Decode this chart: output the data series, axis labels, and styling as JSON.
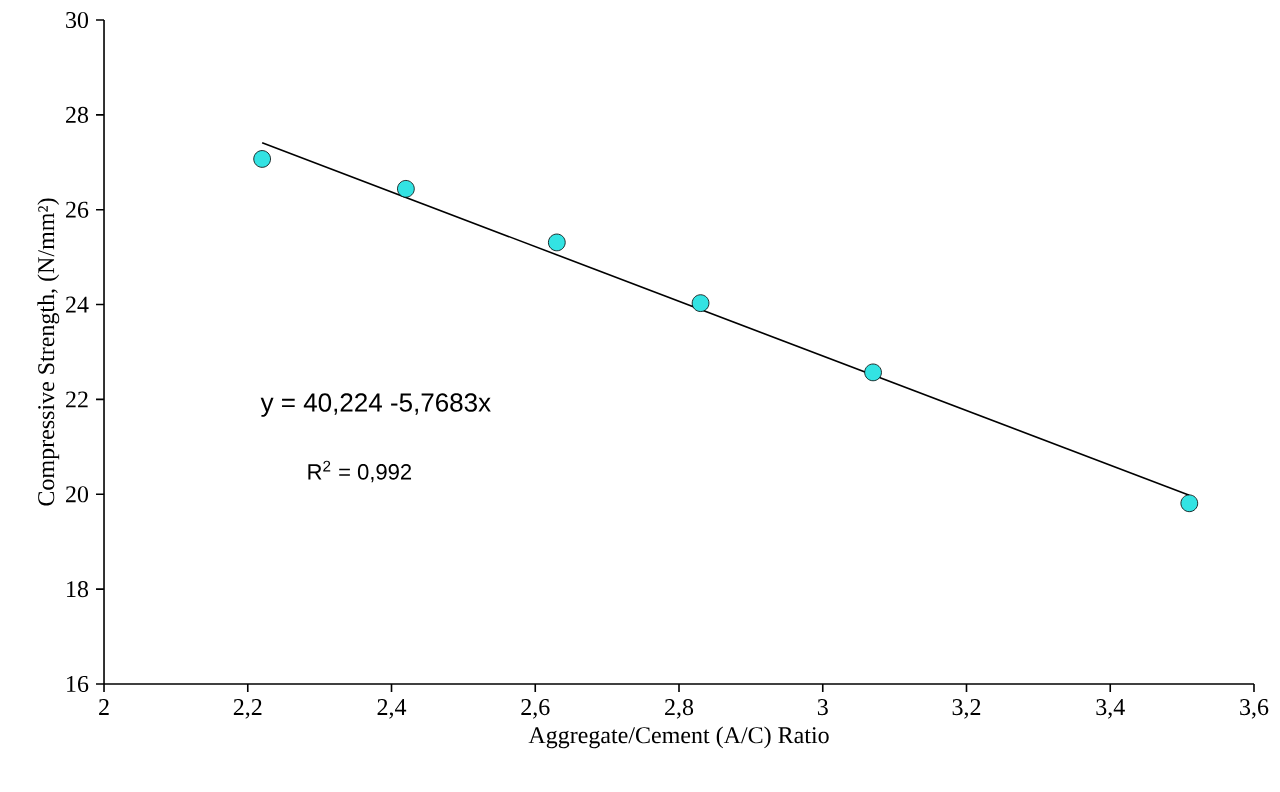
{
  "chart_data": {
    "type": "scatter",
    "xlabel": "Aggregate/Cement (A/C) Ratio",
    "ylabel": "Compressive Strength, (N/mm²)",
    "x": [
      2.22,
      2.42,
      2.63,
      2.83,
      3.07,
      3.51
    ],
    "series": [
      {
        "color": "#33e3e3",
        "marker": "circle",
        "values": [
          27.07,
          26.44,
          25.31,
          24.03,
          22.57,
          19.81
        ]
      },
      {
        "type": "line",
        "color": "#000000",
        "x": [
          2.22,
          3.51
        ],
        "values": [
          27.41,
          19.98
        ],
        "marker": "none",
        "line_style": "solid"
      }
    ],
    "annotations": [
      "y =  40,224 -5,7683x",
      "R$^{2}$ = 0,992"
    ],
    "xlim": [
      2,
      3.6
    ],
    "ylim": [
      16,
      30
    ],
    "xticks": [
      2,
      {
        "value": 2.2,
        "label": "2,2"
      },
      {
        "value": 2.4,
        "label": "2,4"
      },
      {
        "value": 2.6,
        "label": "2,6"
      },
      {
        "value": 2.8,
        "label": "2,8"
      },
      3,
      {
        "value": 3.2,
        "label": "3,2"
      },
      {
        "value": 3.4,
        "label": "3,4"
      },
      {
        "value": 3.6,
        "label": "3,6"
      }
    ],
    "yticks": [
      16,
      18,
      20,
      22,
      24,
      26,
      28,
      30
    ],
    "grid": false
  }
}
